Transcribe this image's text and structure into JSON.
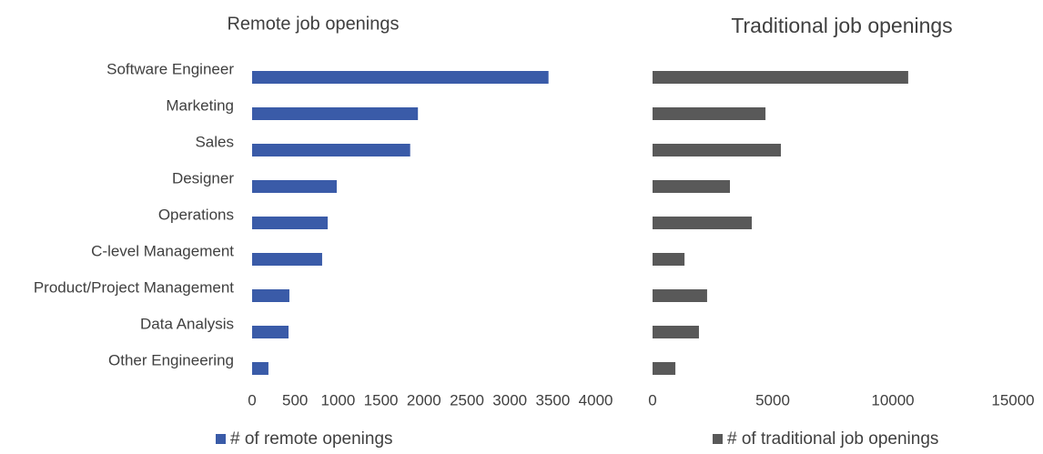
{
  "chart_data": [
    {
      "type": "bar",
      "orientation": "horizontal",
      "title": "Remote job openings",
      "categories": [
        "Software Engineer",
        "Marketing",
        "Sales",
        "Designer",
        "Operations",
        "C-level Management",
        "Product/Project Management",
        "Data Analysis",
        "Other Engineering"
      ],
      "series": [
        {
          "name": "# of remote openings",
          "color": "#3a5ba8",
          "values": [
            3450,
            1930,
            1840,
            985,
            880,
            815,
            434,
            424,
            190
          ]
        }
      ],
      "xlim": [
        0,
        4000
      ],
      "xticks": [
        0,
        500,
        1000,
        1500,
        2000,
        2500,
        3000,
        3500,
        4000
      ],
      "grid": false
    },
    {
      "type": "bar",
      "orientation": "horizontal",
      "title": "Traditional job openings",
      "categories": [
        null,
        null,
        null,
        null,
        null,
        null,
        null,
        null,
        null
      ],
      "series": [
        {
          "name": "# of traditional job openings",
          "color": "#595959",
          "values": [
            10640,
            4700,
            5340,
            3220,
            4130,
            1330,
            2270,
            1930,
            950
          ]
        }
      ],
      "xlim": [
        0,
        15000
      ],
      "xticks": [
        0,
        5000,
        10000,
        15000
      ],
      "grid": false
    }
  ]
}
